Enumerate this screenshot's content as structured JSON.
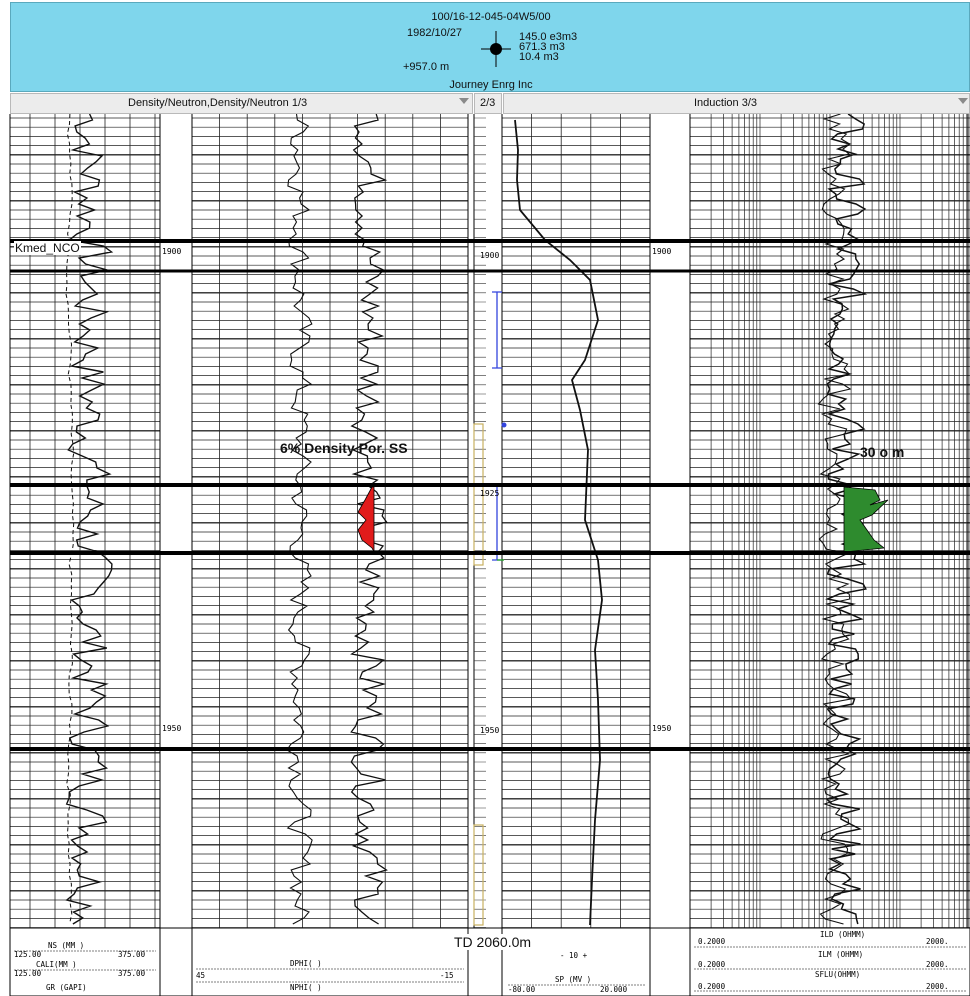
{
  "header": {
    "uwi": "100/16-12-045-04W5/00",
    "spud_date": "1982/10/27",
    "elevation": "+957.0 m",
    "operator": "Journey Enrg Inc",
    "production": [
      "145.0 e3m3",
      "671.3 m3",
      "10.4 m3"
    ]
  },
  "tabs": {
    "density": "Density/Neutron,Density/Neutron 1/3",
    "depth": "2/3",
    "induction": "Induction 3/3"
  },
  "tops": {
    "kmed": "Kmed_NCO"
  },
  "depth_labels": [
    "1900",
    "1900",
    "1900",
    "1925",
    "1950",
    "1950",
    "1950"
  ],
  "annotations": {
    "density_cutoff": "6% Density Por. SS",
    "resistivity_cutoff": "30 o m"
  },
  "total_depth": "TD 2060.0m",
  "footer": {
    "ns": "NS   (MM   )",
    "ns_left": "125.00",
    "ns_right": "375.00",
    "cali": "CALI(MM   )",
    "cali_left": "125.00",
    "cali_right": "375.00",
    "gr": "GR   (GAPI)",
    "dphi": "DPHI(      )",
    "dphi_left": "45",
    "dphi_right": "-15",
    "nphi": "NPHI(      )",
    "sp_mid": "- 10 +",
    "sp": "SP   (MV   )",
    "sp_left": "-80.00",
    "sp_right": "20.000",
    "ild_top": "ILD  (OHMM)",
    "ilm": "ILM  (OHMM)",
    "sflu": "SFLU(OHMM)",
    "res_left": [
      "0.2000",
      "0.2000",
      "0.2000"
    ],
    "res_right": [
      "2000.",
      "2000.",
      "2000."
    ]
  },
  "colors": {
    "header_bg": "#7fd6ec",
    "pay_density": "#e11b1b",
    "pay_resistivity": "#2e8b2e",
    "interval_marker": "#3344dd",
    "core_marker": "#c8b060"
  }
}
